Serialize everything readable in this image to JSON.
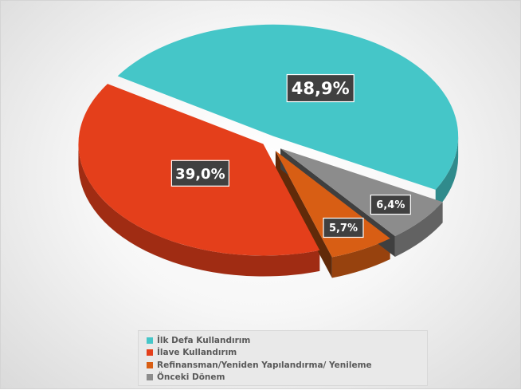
{
  "chart_data": {
    "type": "pie",
    "title": "",
    "series": [
      {
        "name": "İlk Defa Kullandırım",
        "value": 48.9,
        "label": "48,9%",
        "color": "#45c6c8"
      },
      {
        "name": "İlave Kullandırım",
        "value": 39.0,
        "label": "39,0%",
        "color": "#e43f1b"
      },
      {
        "name": "Refinansman/Yeniden Yapılandırma/ Yenileme",
        "value": 5.7,
        "label": "5,7%",
        "color": "#d85e14"
      },
      {
        "name": "Önceki Dönem",
        "value": 6.4,
        "label": "6,4%",
        "color": "#8c8c8c"
      }
    ],
    "legend_position": "bottom",
    "style": "3d-exploded"
  }
}
